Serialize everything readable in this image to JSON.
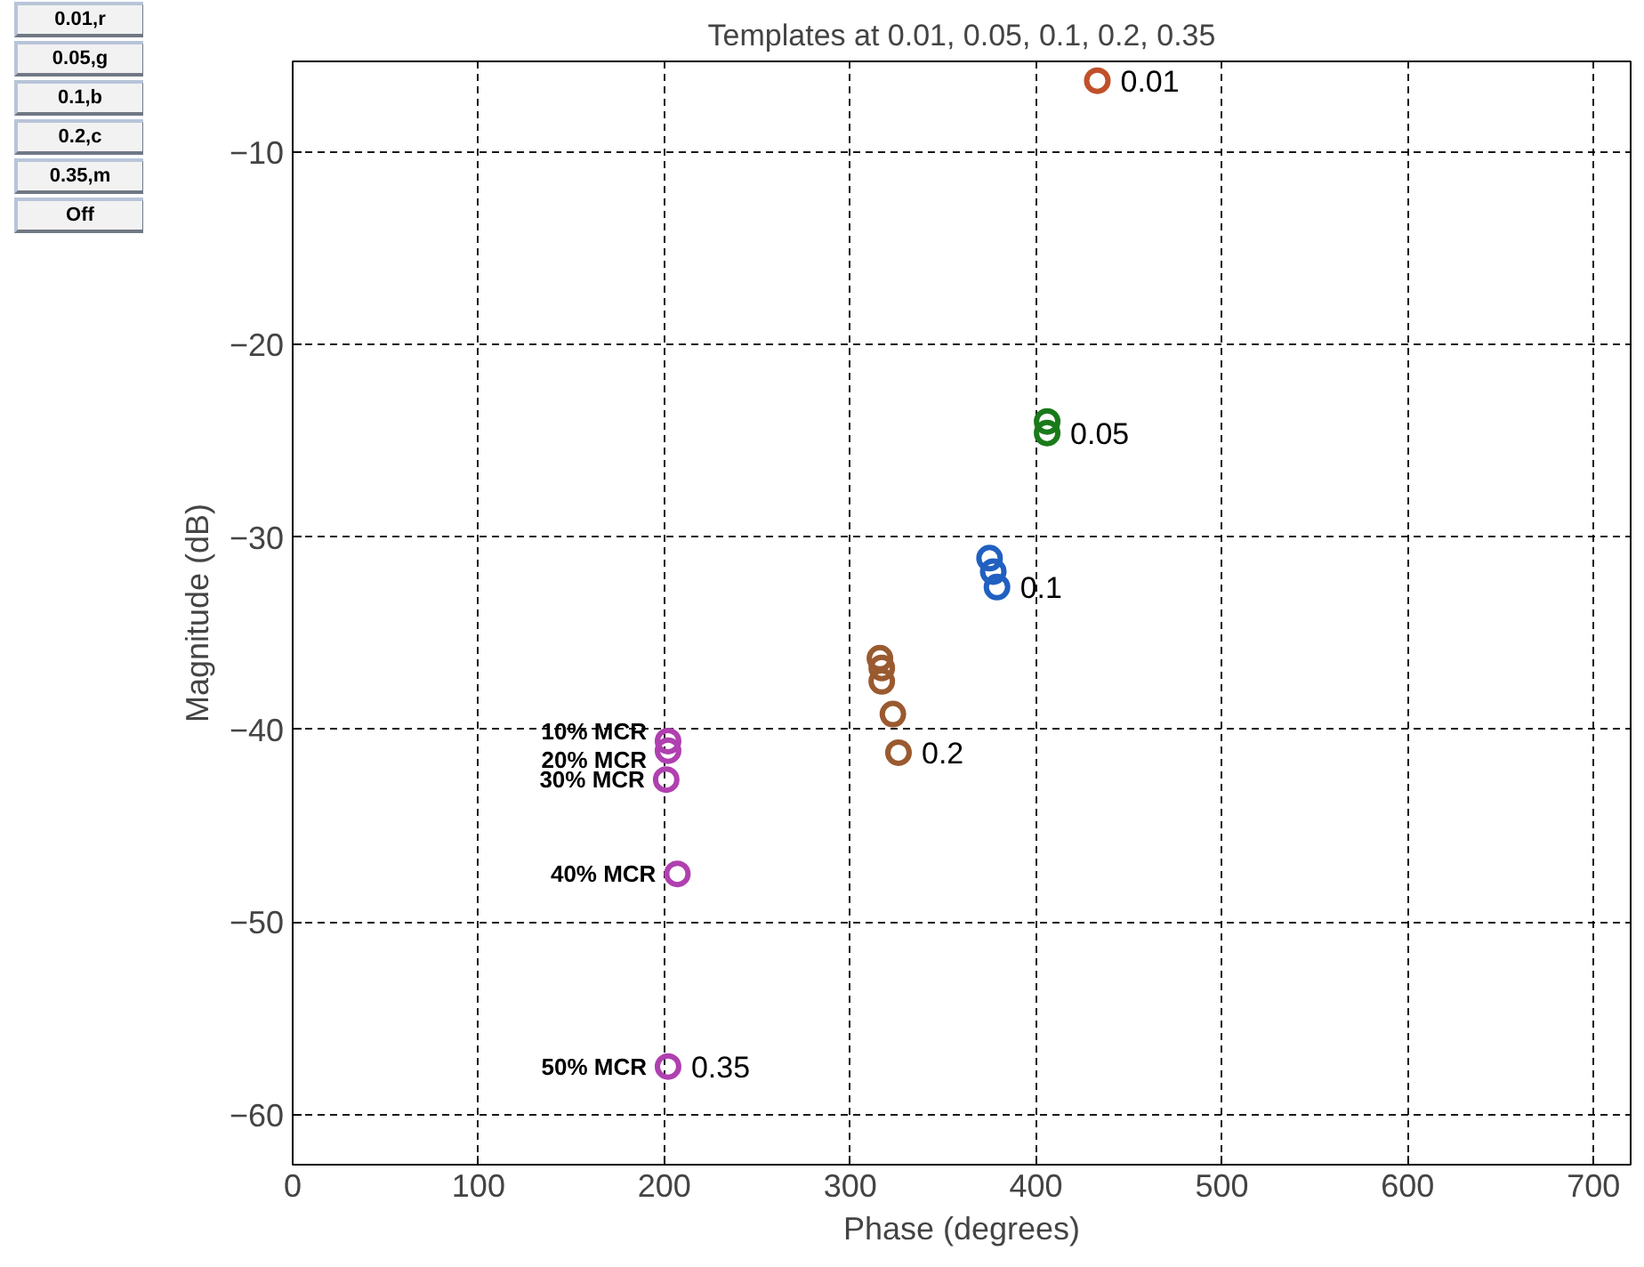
{
  "chart_data": {
    "type": "scatter",
    "title": "Templates at 0.01, 0.05, 0.1, 0.2, 0.35",
    "xlabel": "Phase (degrees)",
    "ylabel": "Magnitude (dB)",
    "xlim": [
      0,
      720
    ],
    "ylim": [
      -62.6,
      -5.3
    ],
    "xticks": [
      0,
      100,
      200,
      300,
      400,
      500,
      600,
      700
    ],
    "yticks": [
      -60,
      -50,
      -40,
      -30,
      -20,
      -10
    ],
    "grid": true,
    "marker": "circle",
    "series": [
      {
        "name": "0.01",
        "color": "#c0502a",
        "x": [
          433
        ],
        "values": [
          -6.3
        ]
      },
      {
        "name": "0.05",
        "color": "#1a7a1a",
        "x": [
          406,
          406
        ],
        "values": [
          -24.0,
          -24.6
        ]
      },
      {
        "name": "0.1",
        "color": "#2060c0",
        "x": [
          375,
          377,
          379
        ],
        "values": [
          -31.1,
          -31.8,
          -32.6
        ]
      },
      {
        "name": "0.2",
        "color": "#9a5a30",
        "x": [
          316,
          317,
          317,
          323,
          326
        ],
        "values": [
          -36.3,
          -36.8,
          -37.5,
          -39.2,
          -41.2
        ]
      },
      {
        "name": "0.35",
        "color": "#b040b0",
        "x": [
          202,
          202,
          201,
          207,
          202
        ],
        "values": [
          -40.6,
          -41.1,
          -42.6,
          -47.5,
          -57.5
        ]
      }
    ],
    "annotations": [
      {
        "text": "10% MCR",
        "x": 202,
        "y": -40.6
      },
      {
        "text": "20% MCR",
        "x": 202,
        "y": -41.1
      },
      {
        "text": "30% MCR",
        "x": 201,
        "y": -42.6
      },
      {
        "text": "40% MCR",
        "x": 207,
        "y": -47.5
      },
      {
        "text": "50% MCR",
        "x": 202,
        "y": -57.5
      },
      "0.01,r",
      "0.05,g",
      "0.1,b",
      "0.2,c",
      "0.35,m",
      "Off"
    ]
  }
}
